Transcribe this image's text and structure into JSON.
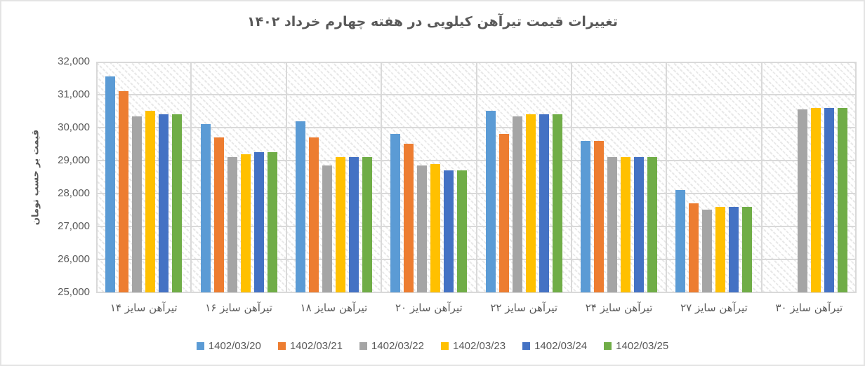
{
  "chart_data": {
    "type": "bar",
    "title": "تغییرات قیمت تیرآهن کیلویی در هفته چهارم خرداد ۱۴۰۲",
    "xlabel": "",
    "ylabel": "قیمت بر حسب تومان",
    "ylim": [
      25000,
      32000
    ],
    "ytick_labels": [
      "32,000",
      "31,000",
      "30,000",
      "29,000",
      "28,000",
      "27,000",
      "26,000",
      "25,000"
    ],
    "grid": true,
    "plot_background": "diagonal-hatch-pattern",
    "gridline_color": "#D9D9D9",
    "text_color": "#595959",
    "legend_position": "bottom",
    "categories": [
      "تیرآهن سایز ۱۴",
      "تیرآهن سایز ۱۶",
      "تیرآهن سایز ۱۸",
      "تیرآهن سایز ۲۰",
      "تیرآهن سایز ۲۲",
      "تیرآهن سایز ۲۴",
      "تیرآهن سایز ۲۷",
      "تیرآهن سایز ۳۰"
    ],
    "series": [
      {
        "name": "1402/03/20",
        "color": "#5B9BD5",
        "values": [
          31550,
          30100,
          30200,
          29800,
          30500,
          29600,
          28100,
          null
        ]
      },
      {
        "name": "1402/03/21",
        "color": "#ED7D31",
        "values": [
          31100,
          29700,
          29700,
          29500,
          29800,
          29600,
          27700,
          null
        ]
      },
      {
        "name": "1402/03/22",
        "color": "#A5A5A5",
        "values": [
          30350,
          29100,
          28850,
          28850,
          30350,
          29100,
          27500,
          30550
        ]
      },
      {
        "name": "1402/03/23",
        "color": "#FFC000",
        "values": [
          30500,
          29200,
          29100,
          28900,
          30400,
          29100,
          27600,
          30600
        ]
      },
      {
        "name": "1402/03/24",
        "color": "#4472C4",
        "values": [
          30400,
          29250,
          29100,
          28700,
          30400,
          29100,
          27600,
          30600
        ]
      },
      {
        "name": "1402/03/25",
        "color": "#70AD47",
        "values": [
          30400,
          29250,
          29100,
          28700,
          30400,
          29100,
          27600,
          30600
        ]
      }
    ]
  }
}
